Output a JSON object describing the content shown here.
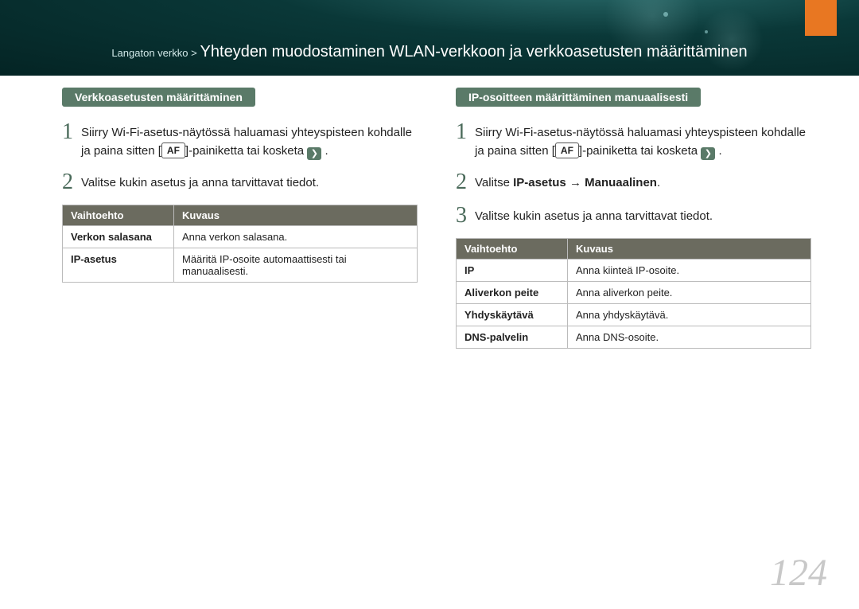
{
  "header": {
    "breadcrumb_path": "Langaton verkko >",
    "breadcrumb_title": "Yhteyden muodostaminen WLAN-verkkoon ja verkkoasetusten määrittäminen"
  },
  "left": {
    "pill": "Verkkoasetusten määrittäminen",
    "step1_a": "Siirry Wi-Fi-asetus-näytössä haluamasi yhteyspisteen kohdalle ja paina sitten [",
    "af": "AF",
    "step1_b": "]-painiketta tai kosketa ",
    "step1_c": " .",
    "step2": "Valitse kukin asetus ja anna tarvittavat tiedot.",
    "table": {
      "h1": "Vaihtoehto",
      "h2": "Kuvaus",
      "rows": [
        {
          "opt": "Verkon salasana",
          "desc": "Anna verkon salasana."
        },
        {
          "opt": "IP-asetus",
          "desc": "Määritä IP-osoite automaattisesti tai manuaalisesti."
        }
      ]
    }
  },
  "right": {
    "pill": "IP-osoitteen määrittäminen manuaalisesti",
    "step1_a": "Siirry Wi-Fi-asetus-näytössä haluamasi yhteyspisteen kohdalle ja paina sitten [",
    "af": "AF",
    "step1_b": "]-painiketta tai kosketa ",
    "step1_c": " .",
    "step2_a": "Valitse ",
    "step2_bold": "IP-asetus → Manuaalinen",
    "step2_b": ".",
    "step3": "Valitse kukin asetus ja anna tarvittavat tiedot.",
    "table": {
      "h1": "Vaihtoehto",
      "h2": "Kuvaus",
      "rows": [
        {
          "opt": "IP",
          "desc": "Anna kiinteä IP-osoite."
        },
        {
          "opt": "Aliverkon peite",
          "desc": "Anna aliverkon peite."
        },
        {
          "opt": "Yhdyskäytävä",
          "desc": "Anna yhdyskäytävä."
        },
        {
          "opt": "DNS-palvelin",
          "desc": "Anna DNS-osoite."
        }
      ]
    }
  },
  "page_number": "124"
}
